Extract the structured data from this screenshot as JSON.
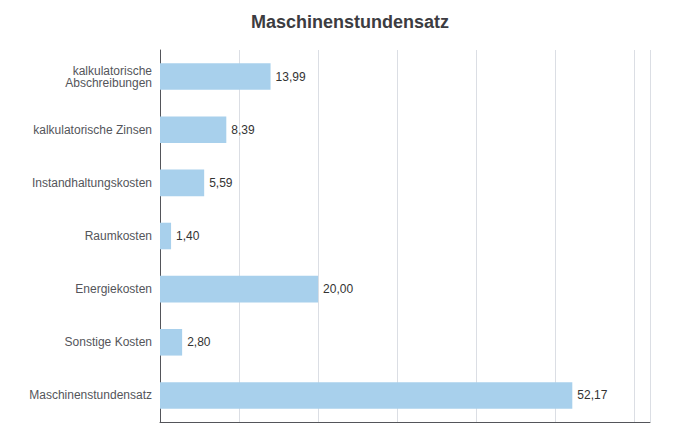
{
  "chart_data": {
    "type": "bar",
    "orientation": "horizontal",
    "title": "Maschinenstundensatz",
    "categories": [
      "kalkulatorische\nAbschreibungen",
      "kalkulatorische Zinsen",
      "Instandhaltungskosten",
      "Raumkosten",
      "Energiekosten",
      "Sonstige Kosten",
      "Maschinenstundensatz"
    ],
    "values": [
      13.99,
      8.39,
      5.59,
      1.4,
      20.0,
      2.8,
      52.17
    ],
    "value_labels": [
      "13,99",
      "8,39",
      "5,59",
      "1,40",
      "20,00",
      "2,80",
      "52,17"
    ],
    "data_labels": true,
    "color": "#a8d0ec",
    "xlim": [
      0,
      62
    ],
    "xticks": [
      0,
      10,
      20,
      30,
      40,
      50,
      60
    ],
    "tick_labels": "y",
    "grid": true
  }
}
